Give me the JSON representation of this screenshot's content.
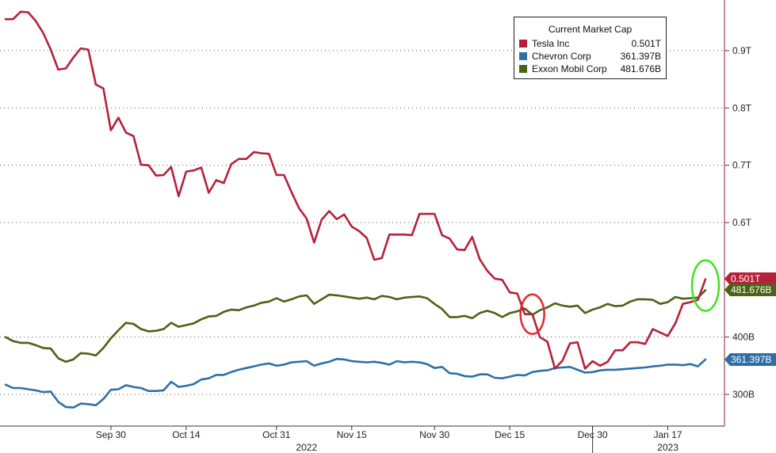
{
  "chart_data": {
    "type": "line",
    "title": "",
    "xlabel": "",
    "ylabel": "",
    "ylim": [
      250,
      1000
    ],
    "y_unit": "billions USD",
    "grid": true,
    "legend_position": "top-right",
    "x_tick_labels": [
      "Sep 30",
      "Oct 14",
      "Oct 31",
      "Nov 15",
      "Nov 30",
      "Dec 15",
      "Dec 30",
      "Jan 17"
    ],
    "x_tick_positions": [
      14,
      24,
      36,
      46,
      57,
      67,
      78,
      88
    ],
    "year_labels": [
      {
        "label": "2022",
        "at": 40
      },
      {
        "label": "2023",
        "at": 88
      }
    ],
    "year_divider_at": 78,
    "y_ticks": [
      {
        "value": 300,
        "label": "300B"
      },
      {
        "value": 400,
        "label": "400B"
      },
      {
        "value": 600,
        "label": "0.6T"
      },
      {
        "value": 700,
        "label": "0.7T"
      },
      {
        "value": 800,
        "label": "0.8T"
      },
      {
        "value": 900,
        "label": "0.9T"
      }
    ],
    "series": [
      {
        "name": "Tesla Inc",
        "color": "#b5213a",
        "end_label": "0.501T",
        "values": [
          955,
          955,
          968,
          967,
          952,
          931,
          902,
          867,
          869,
          888,
          904,
          902,
          841,
          834,
          761,
          783,
          757,
          751,
          701,
          700,
          682,
          683,
          697,
          646,
          689,
          691,
          696,
          652,
          674,
          669,
          702,
          711,
          711,
          723,
          721,
          720,
          683,
          683,
          653,
          625,
          607,
          565,
          605,
          620,
          606,
          614,
          593,
          585,
          573,
          535,
          538,
          579,
          579,
          579,
          578,
          615,
          615,
          615,
          578,
          572,
          553,
          552,
          575,
          536,
          516,
          502,
          500,
          478,
          476,
          440,
          440,
          400,
          392,
          345,
          359,
          389,
          391,
          345,
          358,
          350,
          357,
          377,
          377,
          391,
          391,
          388,
          414,
          408,
          402,
          424,
          458,
          461,
          465,
          501
        ]
      },
      {
        "name": "Chevron Corp",
        "color": "#2e6fa8",
        "end_label": "361.397B",
        "values": [
          317,
          311,
          311,
          309,
          307,
          304,
          305,
          287,
          278,
          277,
          284,
          283,
          281,
          292,
          308,
          309,
          316,
          313,
          311,
          306,
          306,
          307,
          322,
          313,
          315,
          318,
          326,
          328,
          334,
          334,
          339,
          343,
          346,
          349,
          352,
          354,
          350,
          352,
          356,
          357,
          358,
          350,
          354,
          357,
          362,
          361,
          358,
          357,
          356,
          357,
          355,
          352,
          358,
          356,
          357,
          356,
          353,
          346,
          348,
          337,
          336,
          332,
          331,
          335,
          335,
          329,
          328,
          331,
          334,
          333,
          339,
          341,
          342,
          346,
          347,
          348,
          343,
          338,
          339,
          342,
          343,
          343,
          344,
          345,
          346,
          347,
          349,
          350,
          352,
          352,
          351,
          353,
          349,
          361
        ]
      },
      {
        "name": "Exxon Mobil Corp",
        "color": "#4a6316",
        "end_label": "481.676B",
        "values": [
          400,
          393,
          390,
          390,
          386,
          381,
          380,
          363,
          357,
          361,
          372,
          371,
          368,
          381,
          398,
          412,
          425,
          423,
          414,
          410,
          411,
          414,
          425,
          418,
          421,
          424,
          431,
          436,
          437,
          444,
          448,
          447,
          452,
          455,
          460,
          462,
          468,
          462,
          466,
          471,
          473,
          458,
          466,
          474,
          473,
          471,
          469,
          467,
          469,
          466,
          472,
          470,
          466,
          469,
          470,
          471,
          468,
          458,
          449,
          435,
          435,
          437,
          433,
          442,
          446,
          442,
          435,
          442,
          445,
          450,
          439,
          447,
          452,
          459,
          455,
          453,
          455,
          442,
          448,
          452,
          458,
          454,
          455,
          462,
          466,
          466,
          465,
          458,
          461,
          470,
          467,
          468,
          469,
          482
        ]
      }
    ],
    "annotations": [
      {
        "shape": "ellipse",
        "color": "#e8262e",
        "at_index": 70,
        "at_value": 440
      },
      {
        "shape": "ellipse",
        "color": "#3fe31c",
        "at_index": 93,
        "at_value": 490
      }
    ]
  },
  "legend": {
    "title": "Current Market Cap",
    "items": [
      {
        "name": "Tesla Inc",
        "value": "0.501T",
        "color": "#b5213a"
      },
      {
        "name": "Chevron Corp",
        "value": "361.397B",
        "color": "#2e6fa8"
      },
      {
        "name": "Exxon Mobil Corp",
        "value": "481.676B",
        "color": "#4a6316"
      }
    ]
  }
}
